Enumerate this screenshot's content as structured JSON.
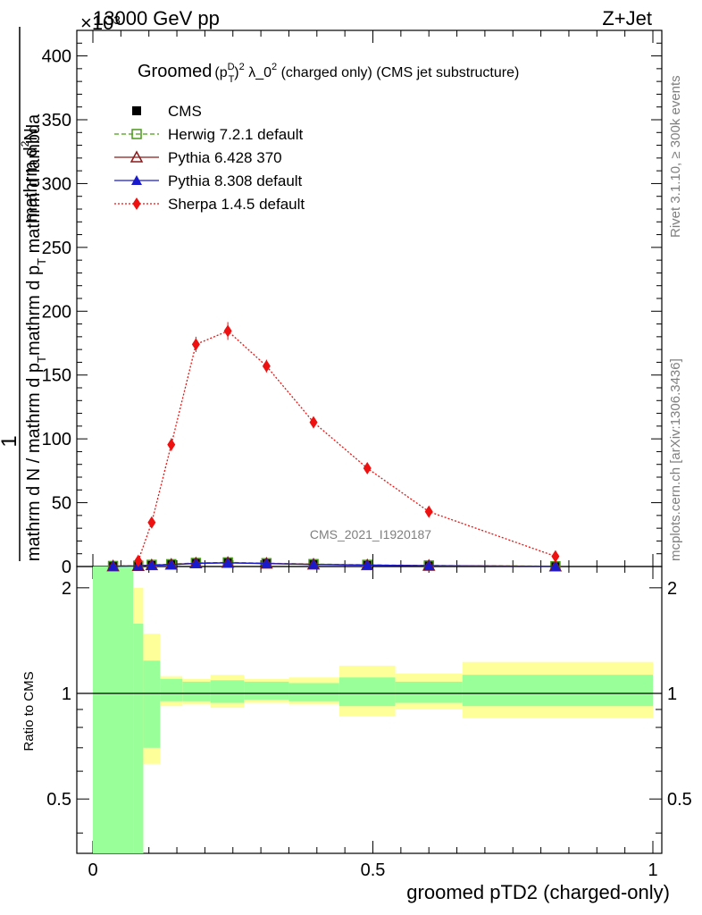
{
  "header": {
    "energy": "13000 GeV pp",
    "process": "Z+Jet",
    "exponent": "×10³"
  },
  "side": {
    "rivet": "Rivet 3.1.10, ≥ 300k events",
    "mcplots": "mcplots.cern.ch [arXiv:1306.3436]"
  },
  "chart_data": [
    {
      "type": "line",
      "title": "Groomed (pTD)² λ_0² (charged only) (CMS jet substructure)",
      "title_parts": {
        "a": "Groomed",
        "b": "(p",
        "c": "D",
        "d": "T",
        "e": ")",
        "f": "2",
        "g": " λ_0",
        "h": "2",
        "i": " (charged only) (CMS jet substructure)"
      },
      "watermark": "CMS_2021_I1920187",
      "ylabel": {
        "one": "1",
        "numerator": "mathrm d²N",
        "denominator": "mathrm d N / mathrm d p_T mathrm d p_T mathrm d lambda",
        "numerator_parts": {
          "a": "mathrm d",
          "b": "2",
          "c": "N"
        },
        "denominator_parts": {
          "a": "mathrm d N / mathrm d p",
          "b": "T",
          "c": "mathrm d p",
          "d": "T",
          "e": " mathrm d lambda"
        }
      },
      "xlim": [
        0,
        1
      ],
      "ylim": [
        0,
        420
      ],
      "y_scale_note": "values in units of 10^3",
      "yticks": [
        0,
        50,
        100,
        150,
        200,
        250,
        300,
        350,
        400
      ],
      "ytick_labels": [
        "0",
        "50",
        "100",
        "150",
        "200",
        "250",
        "300",
        "350",
        "400"
      ],
      "legend": [
        {
          "label": "CMS",
          "color": "#000000",
          "marker": "filled-square",
          "style": "none"
        },
        {
          "label": "Herwig 7.2.1 default",
          "color": "#4a9a1a",
          "marker": "open-square",
          "style": "dashed"
        },
        {
          "label": "Pythia 6.428 370",
          "color": "#8b1a1a",
          "marker": "open-triangle",
          "style": "solid"
        },
        {
          "label": "Pythia 8.308 default",
          "color": "#1a1acd",
          "marker": "filled-triangle",
          "style": "solid"
        },
        {
          "label": "Sherpa 1.4.5 default",
          "color": "#ee1111",
          "marker": "filled-diamond",
          "style": "dotted"
        }
      ],
      "series": [
        {
          "name": "CMS",
          "x": [
            0.036,
            0.081,
            0.105,
            0.14,
            0.184,
            0.241,
            0.31,
            0.394,
            0.49,
            0.6,
            0.826
          ],
          "y": [
            0.3,
            0.5,
            1.0,
            1.5,
            2.5,
            3.0,
            2.5,
            1.8,
            1.2,
            0.7,
            0.2
          ]
        },
        {
          "name": "Herwig 7.2.1 default",
          "x": [
            0.036,
            0.081,
            0.105,
            0.14,
            0.184,
            0.241,
            0.31,
            0.394,
            0.49,
            0.6,
            0.826
          ],
          "y": [
            0.4,
            0.6,
            1.3,
            1.8,
            2.8,
            3.2,
            2.6,
            1.9,
            1.3,
            0.8,
            0.2
          ]
        },
        {
          "name": "Pythia 6.428 370",
          "x": [
            0.036,
            0.081,
            0.105,
            0.14,
            0.184,
            0.241,
            0.31,
            0.394,
            0.49,
            0.6,
            0.826
          ],
          "y": [
            0.3,
            0.5,
            1.1,
            1.6,
            2.6,
            3.0,
            2.4,
            1.7,
            1.1,
            0.7,
            0.2
          ]
        },
        {
          "name": "Pythia 8.308 default",
          "x": [
            0.036,
            0.081,
            0.105,
            0.14,
            0.184,
            0.241,
            0.31,
            0.394,
            0.49,
            0.6,
            0.826
          ],
          "y": [
            0.2,
            0.4,
            0.9,
            1.4,
            2.4,
            2.8,
            2.3,
            1.6,
            1.1,
            0.6,
            0.1
          ]
        },
        {
          "name": "Sherpa 1.4.5 default",
          "x": [
            0.081,
            0.105,
            0.14,
            0.184,
            0.241,
            0.31,
            0.394,
            0.49,
            0.6,
            0.826
          ],
          "y": [
            4.5,
            34.5,
            95.5,
            174.0,
            184.5,
            157.0,
            113.0,
            77.0,
            43.0,
            8.0
          ],
          "err": [
            1.5,
            3.0,
            5.0,
            6.0,
            7.0,
            5.0,
            4.0,
            3.0,
            2.0,
            1.0
          ]
        }
      ]
    },
    {
      "type": "area",
      "ylabel": "Ratio to CMS",
      "xlabel": "groomed pTD2 (charged-only)",
      "xlim": [
        0,
        1
      ],
      "ylim": [
        0.35,
        2.3
      ],
      "yscale": "log",
      "xticks": [
        0,
        0.5,
        1
      ],
      "xtick_labels": [
        "0",
        "0.5",
        "1"
      ],
      "yticks": [
        0.5,
        1,
        2
      ],
      "ytick_labels": [
        "0.5",
        "1",
        "2"
      ],
      "reference_line": 1,
      "bins": [
        {
          "x0": 0.0,
          "x1": 0.072,
          "stat_lo": 0.3,
          "stat_hi": 2.3,
          "tot_lo": 0.3,
          "tot_hi": 2.3
        },
        {
          "x0": 0.072,
          "x1": 0.09,
          "stat_lo": 0.3,
          "stat_hi": 1.58,
          "tot_lo": 0.3,
          "tot_hi": 2.0
        },
        {
          "x0": 0.09,
          "x1": 0.12,
          "stat_lo": 0.7,
          "stat_hi": 1.24,
          "tot_lo": 0.63,
          "tot_hi": 1.48
        },
        {
          "x0": 0.12,
          "x1": 0.16,
          "stat_lo": 0.95,
          "stat_hi": 1.1,
          "tot_lo": 0.92,
          "tot_hi": 1.12
        },
        {
          "x0": 0.16,
          "x1": 0.21,
          "stat_lo": 0.95,
          "stat_hi": 1.08,
          "tot_lo": 0.93,
          "tot_hi": 1.1
        },
        {
          "x0": 0.21,
          "x1": 0.27,
          "stat_lo": 0.94,
          "stat_hi": 1.09,
          "tot_lo": 0.91,
          "tot_hi": 1.13
        },
        {
          "x0": 0.27,
          "x1": 0.35,
          "stat_lo": 0.96,
          "stat_hi": 1.08,
          "tot_lo": 0.94,
          "tot_hi": 1.1
        },
        {
          "x0": 0.35,
          "x1": 0.44,
          "stat_lo": 0.95,
          "stat_hi": 1.07,
          "tot_lo": 0.93,
          "tot_hi": 1.11
        },
        {
          "x0": 0.44,
          "x1": 0.54,
          "stat_lo": 0.92,
          "stat_hi": 1.11,
          "tot_lo": 0.86,
          "tot_hi": 1.2
        },
        {
          "x0": 0.54,
          "x1": 0.66,
          "stat_lo": 0.94,
          "stat_hi": 1.08,
          "tot_lo": 0.9,
          "tot_hi": 1.14
        },
        {
          "x0": 0.66,
          "x1": 1.0,
          "stat_lo": 0.92,
          "stat_hi": 1.13,
          "tot_lo": 0.85,
          "tot_hi": 1.23
        }
      ],
      "colors": {
        "stat": "#99ff99",
        "total": "#ffff99"
      }
    }
  ]
}
